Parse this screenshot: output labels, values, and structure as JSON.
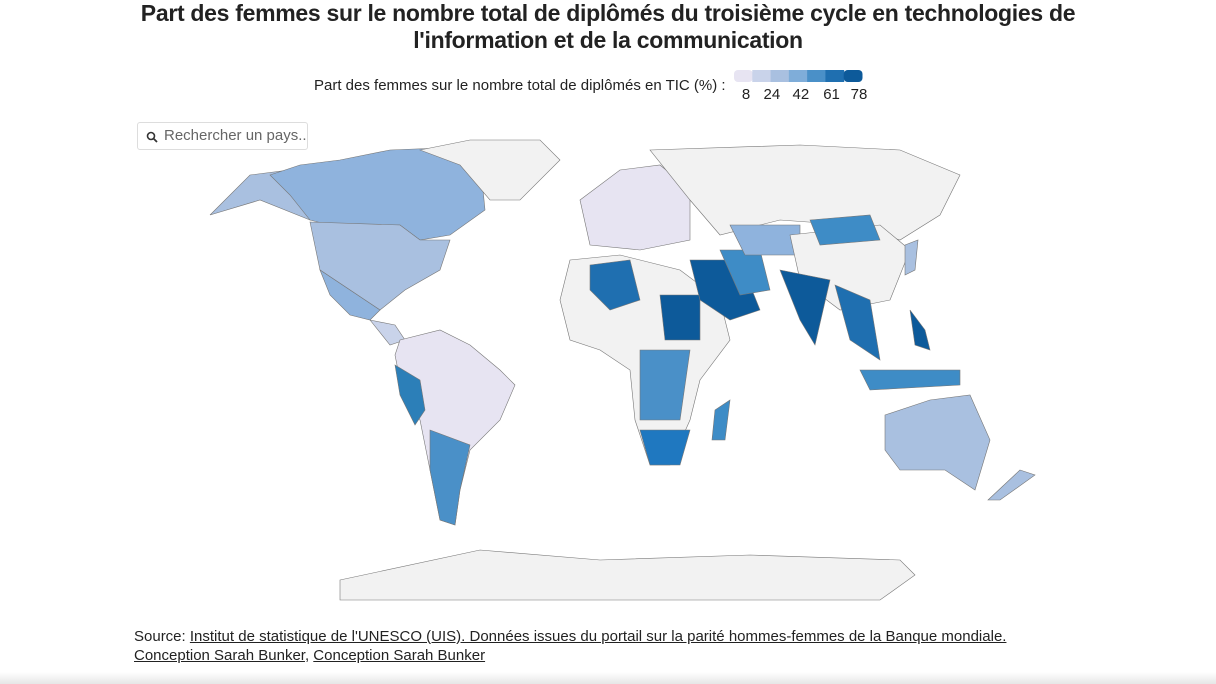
{
  "header": {
    "title": "Part des femmes sur le nombre total de diplômés du troisième cycle en technologies de l'information et de la communication"
  },
  "legend": {
    "label": "Part des femmes sur le nombre total de diplômés en TIC (%) :",
    "ticks": [
      8,
      24,
      42,
      61,
      78
    ],
    "colors": [
      "#e7e4f2",
      "#c9d3ea",
      "#a9c0e0",
      "#7fadd9",
      "#4a90c8",
      "#1f6fb0",
      "#0d5a9a"
    ]
  },
  "search": {
    "placeholder": "Rechercher un pays.."
  },
  "source": {
    "prefix": "Source:",
    "links": [
      "Institut de statistique de l'UNESCO (UIS). Données issues du portail sur la parité hommes-femmes de la Banque mondiale. Conception Sarah Bunker",
      "Conception Sarah Bunker"
    ],
    "separator": ","
  }
}
